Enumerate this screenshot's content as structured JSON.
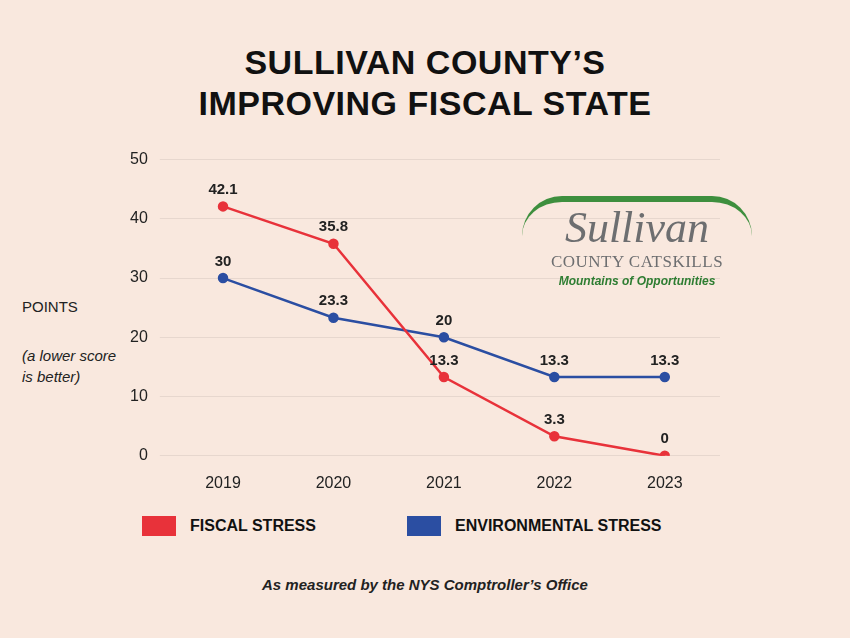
{
  "chart_data": {
    "type": "line",
    "title": "SULLIVAN COUNTY’S IMPROVING FISCAL STATE",
    "ylabel": "POINTS",
    "ylabel_note": "(a lower score is better)",
    "footnote": "As measured by the NYS Comptroller’s Office",
    "logo": {
      "name": "Sullivan",
      "line2": "COUNTY CATSKILLS",
      "tagline": "Mountains of Opportunities"
    },
    "categories": [
      "2019",
      "2020",
      "2021",
      "2022",
      "2023"
    ],
    "series": [
      {
        "name": "FISCAL STRESS",
        "color": "#e8323a",
        "values": [
          42.1,
          35.8,
          13.3,
          3.3,
          0
        ]
      },
      {
        "name": "ENVIRONMENTAL STRESS",
        "color": "#2b4ea2",
        "values": [
          30,
          23.3,
          20,
          13.3,
          13.3
        ]
      }
    ],
    "ylim": [
      0,
      50
    ],
    "yticks": [
      0,
      10,
      20,
      30,
      40,
      50
    ],
    "grid": true,
    "data_labels": true,
    "legend": "bottom"
  }
}
